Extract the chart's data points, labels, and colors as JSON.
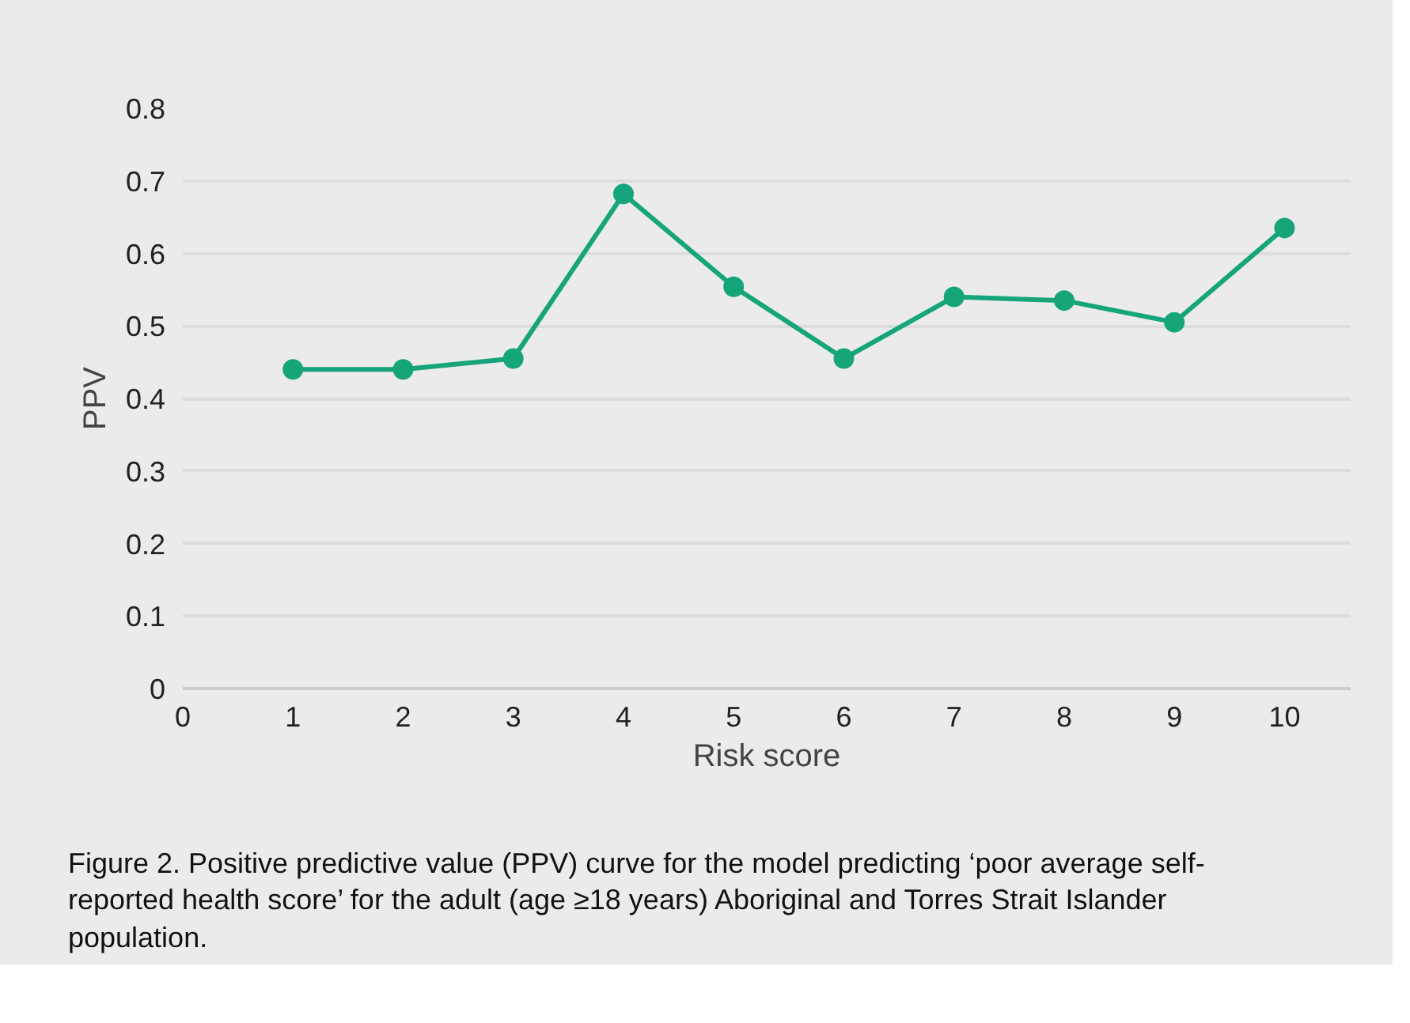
{
  "chart_data": {
    "type": "line",
    "xlabel": "Risk score",
    "ylabel": "PPV",
    "x": [
      1,
      2,
      3,
      4,
      5,
      6,
      7,
      8,
      9,
      10
    ],
    "series": [
      {
        "color": "#16a57a",
        "values": [
          0.44,
          0.44,
          0.455,
          0.682,
          0.554,
          0.455,
          0.54,
          0.535,
          0.505,
          0.635
        ]
      }
    ],
    "xlim": [
      0,
      10.6
    ],
    "xticks": [
      0,
      1,
      2,
      3,
      4,
      5,
      6,
      7,
      8,
      9,
      10
    ],
    "ylim": [
      0,
      0.8
    ],
    "yticks": [
      0,
      0.1,
      0.2,
      0.3,
      0.4,
      0.5,
      0.6,
      0.7,
      0.8
    ],
    "grid": "y",
    "marker": "circle",
    "line_style": "solid",
    "annotations": [
      "Figure 2. Positive predictive value (PPV) curve for the model predicting ‘poor average self-reported health score’ for the adult (age ≥18 years) Aboriginal and Torres Strait Islander population."
    ]
  }
}
